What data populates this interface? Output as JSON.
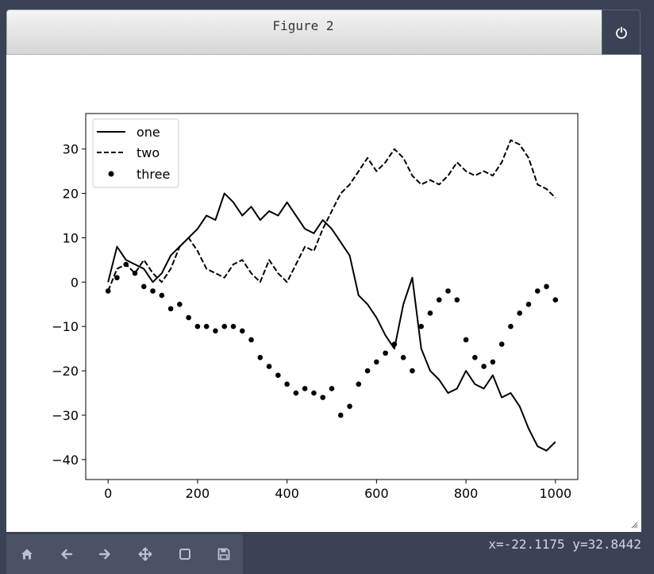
{
  "window": {
    "title": "Figure 2"
  },
  "toolbar": {
    "buttons": [
      {
        "name": "home-button",
        "icon": "home-icon"
      },
      {
        "name": "back-button",
        "icon": "arrow-left-icon"
      },
      {
        "name": "forward-button",
        "icon": "arrow-right-icon"
      },
      {
        "name": "pan-button",
        "icon": "move-icon"
      },
      {
        "name": "zoom-button",
        "icon": "square-icon"
      },
      {
        "name": "save-button",
        "icon": "save-icon"
      }
    ]
  },
  "status": {
    "coords": "x=-22.1175 y=32.8442"
  },
  "colors": {
    "background": "#3a4255",
    "toolbar": "#4a5266",
    "series": "#000000"
  },
  "chart_data": {
    "type": "line",
    "title": "",
    "xlabel": "",
    "ylabel": "",
    "xlim": [
      -50,
      1050
    ],
    "ylim": [
      -44.5,
      38
    ],
    "xticks": [
      0,
      200,
      400,
      600,
      800,
      1000
    ],
    "yticks": [
      -40,
      -30,
      -20,
      -10,
      0,
      10,
      20,
      30
    ],
    "xtick_labels": [
      "0",
      "200",
      "400",
      "600",
      "800",
      "1000"
    ],
    "ytick_labels": [
      "−40",
      "−30",
      "−20",
      "−10",
      "0",
      "10",
      "20",
      "30"
    ],
    "legend_position": "top-left",
    "grid": false,
    "series": [
      {
        "name": "one",
        "style": "solid",
        "x": [
          0,
          20,
          40,
          60,
          80,
          100,
          120,
          140,
          160,
          180,
          200,
          220,
          240,
          260,
          280,
          300,
          320,
          340,
          360,
          380,
          400,
          420,
          440,
          460,
          480,
          500,
          520,
          540,
          560,
          580,
          600,
          620,
          640,
          660,
          680,
          700,
          720,
          740,
          760,
          780,
          800,
          820,
          840,
          860,
          880,
          900,
          920,
          940,
          960,
          980,
          1000
        ],
        "y": [
          0,
          8,
          5,
          4,
          3,
          0,
          2,
          6,
          8,
          10,
          12,
          15,
          14,
          20,
          18,
          15,
          17,
          14,
          16,
          15,
          18,
          15,
          12,
          11,
          14,
          12,
          9,
          6,
          -3,
          -5,
          -8,
          -12,
          -15,
          -5,
          1,
          -15,
          -20,
          -22,
          -25,
          -24,
          -20,
          -23,
          -24,
          -21,
          -26,
          -25,
          -28,
          -33,
          -37,
          -38,
          -36
        ]
      },
      {
        "name": "two",
        "style": "dashed",
        "x": [
          0,
          20,
          40,
          60,
          80,
          100,
          120,
          140,
          160,
          180,
          200,
          220,
          240,
          260,
          280,
          300,
          320,
          340,
          360,
          380,
          400,
          420,
          440,
          460,
          480,
          500,
          520,
          540,
          560,
          580,
          600,
          620,
          640,
          660,
          680,
          700,
          720,
          740,
          760,
          780,
          800,
          820,
          840,
          860,
          880,
          900,
          920,
          940,
          960,
          980,
          1000
        ],
        "y": [
          -2,
          3,
          4,
          2,
          5,
          2,
          0,
          3,
          8,
          10,
          7,
          3,
          2,
          1,
          4,
          5,
          2,
          0,
          5,
          2,
          0,
          4,
          8,
          7,
          12,
          16,
          20,
          22,
          25,
          28,
          25,
          27,
          30,
          28,
          24,
          22,
          23,
          22,
          24,
          27,
          25,
          24,
          25,
          24,
          27,
          32,
          31,
          28,
          22,
          21,
          19
        ]
      },
      {
        "name": "three",
        "style": "dots",
        "x": [
          0,
          20,
          40,
          60,
          80,
          100,
          120,
          140,
          160,
          180,
          200,
          220,
          240,
          260,
          280,
          300,
          320,
          340,
          360,
          380,
          400,
          420,
          440,
          460,
          480,
          500,
          520,
          540,
          560,
          580,
          600,
          620,
          640,
          660,
          680,
          700,
          720,
          740,
          760,
          780,
          800,
          820,
          840,
          860,
          880,
          900,
          920,
          940,
          960,
          980,
          1000
        ],
        "y": [
          -2,
          1,
          4,
          2,
          -1,
          -2,
          -3,
          -6,
          -5,
          -8,
          -10,
          -10,
          -11,
          -10,
          -10,
          -11,
          -13,
          -17,
          -19,
          -21,
          -23,
          -25,
          -24,
          -25,
          -26,
          -24,
          -30,
          -28,
          -23,
          -20,
          -18,
          -16,
          -14,
          -17,
          -20,
          -10,
          -7,
          -4,
          -2,
          -4,
          -13,
          -17,
          -19,
          -18,
          -14,
          -10,
          -7,
          -5,
          -2,
          -1,
          -4
        ]
      }
    ]
  }
}
